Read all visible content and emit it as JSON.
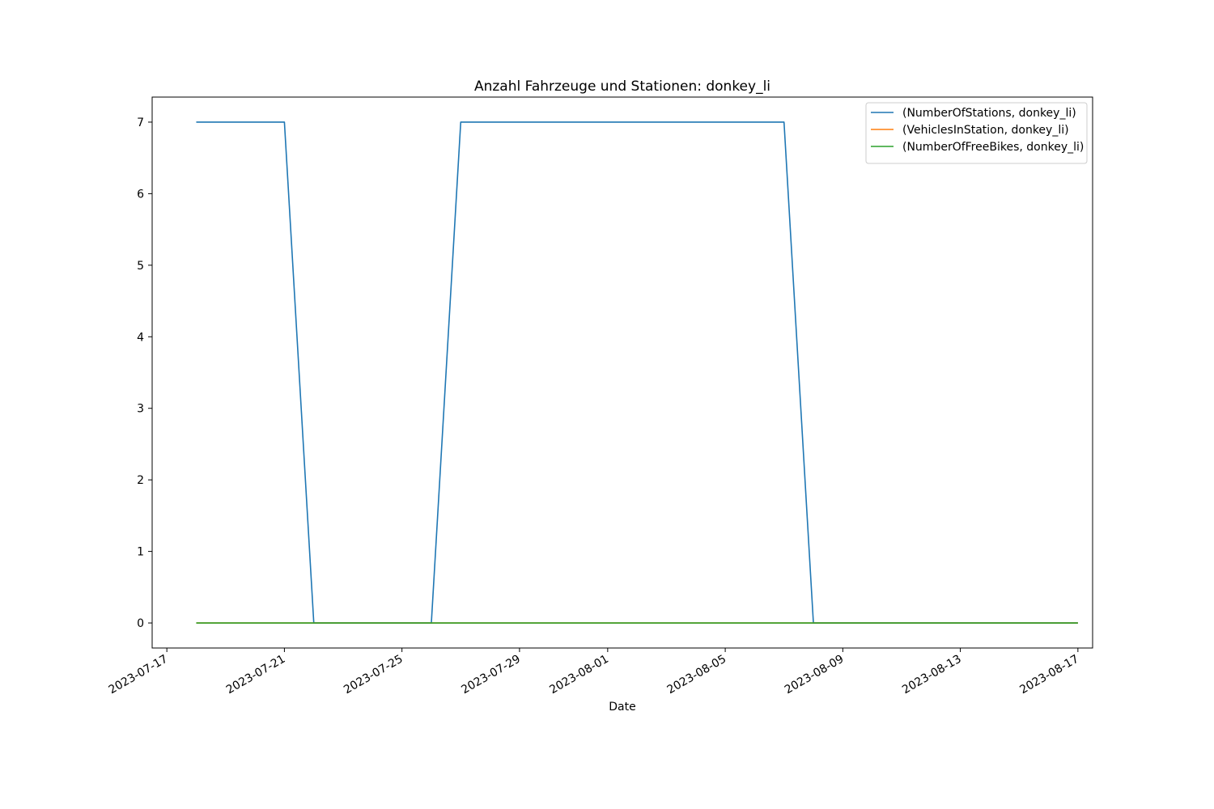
{
  "chart_data": {
    "type": "line",
    "title": "Anzahl Fahrzeuge und Stationen: donkey_li",
    "xlabel": "Date",
    "ylabel": "",
    "x_type": "date",
    "xlim": [
      "2023-07-16T12:00",
      "2023-08-17T12:00"
    ],
    "ylim": [
      -0.35,
      7.35
    ],
    "xticks": [
      "2023-07-17",
      "2023-07-21",
      "2023-07-25",
      "2023-07-29",
      "2023-08-01",
      "2023-08-05",
      "2023-08-09",
      "2023-08-13",
      "2023-08-17"
    ],
    "yticks": [
      0,
      1,
      2,
      3,
      4,
      5,
      6,
      7
    ],
    "grid": false,
    "legend_position": "top-right",
    "series": [
      {
        "name": "(NumberOfStations, donkey_li)",
        "color": "#1f77b4",
        "x": [
          "2023-07-18",
          "2023-07-21",
          "2023-07-22",
          "2023-07-26",
          "2023-07-27",
          "2023-08-07",
          "2023-08-08",
          "2023-08-17"
        ],
        "values": [
          7,
          7,
          0,
          0,
          7,
          7,
          0,
          0
        ]
      },
      {
        "name": "(VehiclesInStation, donkey_li)",
        "color": "#ff7f0e",
        "x": [
          "2023-07-18",
          "2023-08-17"
        ],
        "values": [
          0,
          0
        ]
      },
      {
        "name": "(NumberOfFreeBikes, donkey_li)",
        "color": "#2ca02c",
        "x": [
          "2023-07-18",
          "2023-08-17"
        ],
        "values": [
          0,
          0
        ]
      }
    ]
  }
}
